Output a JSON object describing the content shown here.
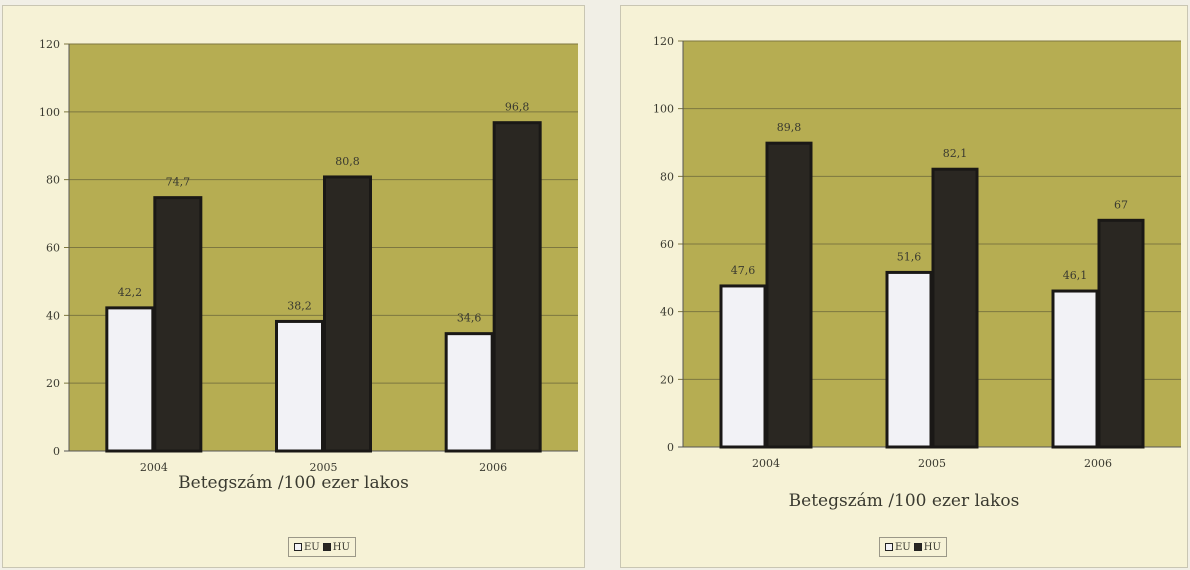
{
  "colors": {
    "plot_bg": "#b6ad52",
    "eu": "#f2f2f6",
    "hu": "#2a2722",
    "grid": "#7d7740",
    "text": "#3a3a30"
  },
  "chart_data": [
    {
      "type": "bar",
      "title": "",
      "xlabel": "Betegszám /100 ezer lakos",
      "ylabel": "",
      "ylim": [
        0,
        120
      ],
      "yticks": [
        "0",
        "20",
        "40",
        "60",
        "80",
        "100",
        "120"
      ],
      "categories": [
        "2004",
        "2005",
        "2006"
      ],
      "series": [
        {
          "name": "EU",
          "values": [
            42.2,
            38.2,
            34.6
          ],
          "labels": [
            "42,2",
            "38,2",
            "34,6"
          ]
        },
        {
          "name": "HU",
          "values": [
            74.7,
            80.8,
            96.8
          ],
          "labels": [
            "74,7",
            "80,8",
            "96,8"
          ]
        }
      ],
      "grid": true,
      "legend": "bottom-center"
    },
    {
      "type": "bar",
      "title": "",
      "xlabel": "Betegszám /100 ezer lakos",
      "ylabel": "",
      "ylim": [
        0,
        120
      ],
      "yticks": [
        "0",
        "20",
        "40",
        "60",
        "80",
        "100",
        "120"
      ],
      "categories": [
        "2004",
        "2005",
        "2006"
      ],
      "series": [
        {
          "name": "EU",
          "values": [
            47.6,
            51.6,
            46.1
          ],
          "labels": [
            "47,6",
            "51,6",
            "46,1"
          ]
        },
        {
          "name": "HU",
          "values": [
            89.8,
            82.1,
            67
          ],
          "labels": [
            "89,8",
            "82,1",
            "67"
          ]
        }
      ],
      "grid": true,
      "legend": "bottom-center"
    }
  ]
}
